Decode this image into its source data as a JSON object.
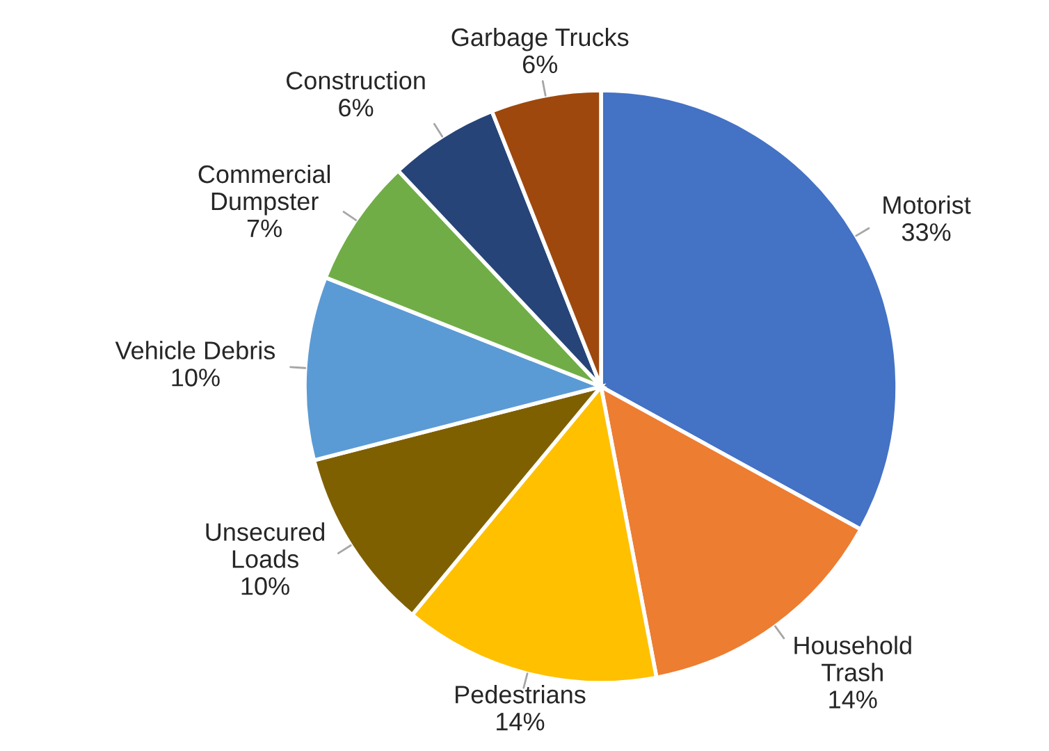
{
  "chart_data": {
    "type": "pie",
    "categories": [
      "Motorist",
      "Household\nTrash",
      "Pedestrians",
      "Unsecured\nLoads",
      "Vehicle Debris",
      "Commercial\nDumpster",
      "Construction",
      "Garbage Trucks"
    ],
    "values": [
      33,
      14,
      14,
      10,
      10,
      7,
      6,
      6
    ],
    "value_labels": [
      "33%",
      "14%",
      "14%",
      "10%",
      "10%",
      "7%",
      "6%",
      "6%"
    ],
    "colors": [
      "#4472c4",
      "#ed7d31",
      "#ffc000",
      "#7f6000",
      "#5b9bd5",
      "#70ad47",
      "#264478",
      "#9e480e"
    ],
    "legend": false
  }
}
